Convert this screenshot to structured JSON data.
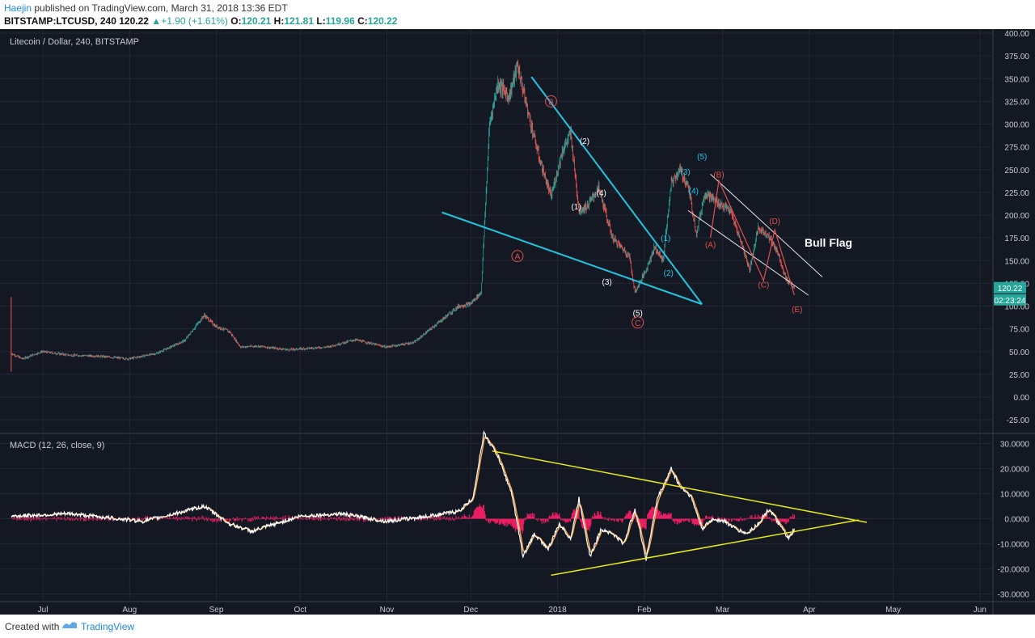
{
  "header": {
    "author": "Haejin",
    "published_text": " published on TradingView.com, March 31, 2018 13:36 EDT",
    "symbol": "BITSTAMP:LTCUSD, 240",
    "last": "120.22",
    "change_arrow": "▲",
    "change": "+1.90 (+1.61%)",
    "o_label": "O:",
    "o_value": "120.21",
    "h_label": "H:",
    "h_value": "121.81",
    "l_label": "L:",
    "l_value": "119.96",
    "c_label": "C:",
    "c_value": "120.22"
  },
  "footer": {
    "created_with": "Created with",
    "brand": "TradingView"
  },
  "colors": {
    "background": "#141823",
    "bull": "#26a69a",
    "bear": "#ef5350",
    "wedge": "#22c4e0",
    "flag": "#e8e8e8",
    "macd_line": "#ffffff",
    "signal_line": "#f5a64a",
    "histogram": "#e91e63",
    "triangle": "#e8e81a",
    "wave_red": "#e05050"
  },
  "chart_data": [
    {
      "type": "line",
      "title": "Litecoin / Dollar, 240, BITSTAMP",
      "xlabel": "",
      "ylabel": "",
      "x_ticks": [
        "Jul",
        "Aug",
        "Sep",
        "Oct",
        "Nov",
        "Dec",
        "2018",
        "Feb",
        "Mar",
        "Apr",
        "May",
        "Jun"
      ],
      "y_ticks": [
        "400.00",
        "375.00",
        "350.00",
        "325.00",
        "300.00",
        "275.00",
        "250.00",
        "225.00",
        "200.00",
        "175.00",
        "150.00",
        "125.00",
        "100.00",
        "75.00",
        "50.00",
        "25.00",
        "0.00",
        "-25.00"
      ],
      "ylim": [
        -40,
        400
      ],
      "xlim": [
        "2017-06-20",
        "2018-06-10"
      ],
      "series": [
        {
          "x": [
            "2017-06-24",
            "2017-06-28",
            "2017-07-05",
            "2017-07-15",
            "2017-07-25",
            "2017-08-05",
            "2017-08-15",
            "2017-08-25",
            "2017-09-01",
            "2017-09-05",
            "2017-09-10",
            "2017-09-14",
            "2017-09-20",
            "2017-10-01",
            "2017-10-15",
            "2017-10-25",
            "2017-11-05",
            "2017-11-15",
            "2017-11-25",
            "2017-12-01",
            "2017-12-05",
            "2017-12-09",
            "2017-12-12",
            "2017-12-15",
            "2017-12-19",
            "2017-12-22",
            "2017-12-26",
            "2017-12-30",
            "2018-01-03",
            "2018-01-07",
            "2018-01-10",
            "2018-01-13",
            "2018-01-16",
            "2018-01-20",
            "2018-01-25",
            "2018-01-31",
            "2018-02-02",
            "2018-02-06",
            "2018-02-09",
            "2018-02-12",
            "2018-02-15",
            "2018-02-18",
            "2018-02-21",
            "2018-02-24",
            "2018-02-27",
            "2018-03-03",
            "2018-03-08",
            "2018-03-12",
            "2018-03-15",
            "2018-03-18",
            "2018-03-21",
            "2018-03-25",
            "2018-03-28",
            "2018-03-31"
          ],
          "values": [
            48,
            42,
            50,
            46,
            45,
            42,
            48,
            62,
            90,
            78,
            72,
            55,
            56,
            52,
            55,
            63,
            55,
            60,
            85,
            100,
            102,
            115,
            300,
            345,
            330,
            365,
            310,
            260,
            220,
            270,
            290,
            205,
            210,
            230,
            175,
            155,
            115,
            140,
            165,
            150,
            235,
            250,
            232,
            180,
            225,
            215,
            205,
            170,
            140,
            185,
            180,
            160,
            130,
            120
          ]
        }
      ],
      "annotations": [
        {
          "label": "A",
          "x": "2017-12-22",
          "y": 155,
          "style": "circle-red"
        },
        {
          "label": "B",
          "x": "2018-01-03",
          "y": 325,
          "style": "circle-red"
        },
        {
          "label": "C",
          "x": "2018-02-03",
          "y": 82,
          "style": "circle-red"
        },
        {
          "label": "(1)",
          "x": "2018-01-12",
          "y": 210,
          "style": "white"
        },
        {
          "label": "(2)",
          "x": "2018-01-15",
          "y": 282,
          "style": "white"
        },
        {
          "label": "(3)",
          "x": "2018-01-23",
          "y": 127,
          "style": "white"
        },
        {
          "label": "(4)",
          "x": "2018-01-21",
          "y": 225,
          "style": "white"
        },
        {
          "label": "(5)",
          "x": "2018-02-03",
          "y": 93,
          "style": "white"
        },
        {
          "label": "(1)",
          "x": "2018-02-13",
          "y": 175,
          "style": "cyan"
        },
        {
          "label": "(2)",
          "x": "2018-02-14",
          "y": 137,
          "style": "cyan"
        },
        {
          "label": "(3)",
          "x": "2018-02-20",
          "y": 248,
          "style": "cyan"
        },
        {
          "label": "(4)",
          "x": "2018-02-23",
          "y": 227,
          "style": "cyan"
        },
        {
          "label": "(5)",
          "x": "2018-02-26",
          "y": 265,
          "style": "cyan"
        },
        {
          "label": "(A)",
          "x": "2018-03-01",
          "y": 168,
          "style": "red"
        },
        {
          "label": "(B)",
          "x": "2018-03-04",
          "y": 245,
          "style": "red"
        },
        {
          "label": "(C)",
          "x": "2018-03-20",
          "y": 124,
          "style": "red"
        },
        {
          "label": "(D)",
          "x": "2018-03-24",
          "y": 194,
          "style": "red"
        },
        {
          "label": "(E)",
          "x": "2018-04-01",
          "y": 97,
          "style": "red"
        }
      ],
      "text_annotations": [
        "Bull Flag"
      ],
      "price_badges": [
        "120.22",
        "02:23:24"
      ],
      "trendlines": [
        {
          "name": "wedge-upper",
          "color": "cyan",
          "from": [
            "2017-12-27",
            352
          ],
          "to": [
            "2018-02-26",
            102
          ]
        },
        {
          "name": "wedge-lower",
          "color": "cyan",
          "from": [
            "2017-11-25",
            203
          ],
          "to": [
            "2018-02-26",
            102
          ]
        },
        {
          "name": "flag-upper",
          "color": "white",
          "from": [
            "2018-03-01",
            245
          ],
          "to": [
            "2018-04-10",
            132
          ]
        },
        {
          "name": "flag-lower",
          "color": "white",
          "from": [
            "2018-02-21",
            205
          ],
          "to": [
            "2018-04-05",
            112
          ]
        }
      ]
    },
    {
      "type": "line",
      "title": "MACD (12, 26, close, 9)",
      "y_ticks": [
        "30.0000",
        "20.0000",
        "10.0000",
        "0.0000",
        "-10.0000",
        "-20.0000",
        "-30.0000"
      ],
      "ylim": [
        -33,
        34
      ],
      "series": [
        {
          "name": "MACD",
          "x": [
            "2017-06-24",
            "2017-07-15",
            "2017-08-10",
            "2017-08-25",
            "2017-09-01",
            "2017-09-10",
            "2017-09-18",
            "2017-10-05",
            "2017-10-20",
            "2017-11-05",
            "2017-11-20",
            "2017-12-01",
            "2017-12-06",
            "2017-12-10",
            "2017-12-15",
            "2017-12-20",
            "2017-12-24",
            "2017-12-28",
            "2018-01-02",
            "2018-01-06",
            "2018-01-10",
            "2018-01-13",
            "2018-01-17",
            "2018-01-21",
            "2018-01-25",
            "2018-01-29",
            "2018-02-02",
            "2018-02-06",
            "2018-02-10",
            "2018-02-15",
            "2018-02-18",
            "2018-02-22",
            "2018-02-26",
            "2018-03-02",
            "2018-03-06",
            "2018-03-10",
            "2018-03-14",
            "2018-03-18",
            "2018-03-22",
            "2018-03-26",
            "2018-03-29",
            "2018-03-31"
          ],
          "values": [
            1,
            2,
            -1,
            3,
            5,
            -2,
            -5,
            1,
            2,
            -1,
            1,
            3,
            8,
            34,
            25,
            10,
            -15,
            -6,
            -12,
            -2,
            -8,
            8,
            -15,
            -4,
            -6,
            -10,
            4,
            -16,
            8,
            20,
            13,
            9,
            -4,
            0,
            -1,
            -4,
            -6,
            -2,
            4,
            -3,
            -8,
            -4
          ]
        }
      ],
      "histogram": "pink"
    }
  ]
}
